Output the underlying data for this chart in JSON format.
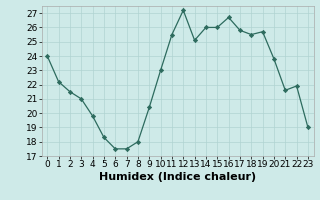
{
  "x": [
    0,
    1,
    2,
    3,
    4,
    5,
    6,
    7,
    8,
    9,
    10,
    11,
    12,
    13,
    14,
    15,
    16,
    17,
    18,
    19,
    20,
    21,
    22,
    23
  ],
  "y": [
    24,
    22.2,
    21.5,
    21,
    19.8,
    18.3,
    17.5,
    17.5,
    18,
    20.4,
    23,
    25.5,
    27.2,
    25.1,
    26,
    26,
    26.7,
    25.8,
    25.5,
    25.7,
    23.8,
    21.6,
    21.9,
    19
  ],
  "line_color": "#2d6b5e",
  "marker": "D",
  "marker_size": 2.2,
  "bg_color": "#ceeae8",
  "grid_color": "#b0d4d2",
  "xlabel": "Humidex (Indice chaleur)",
  "xlim": [
    -0.5,
    23.5
  ],
  "ylim": [
    17,
    27.5
  ],
  "yticks": [
    17,
    18,
    19,
    20,
    21,
    22,
    23,
    24,
    25,
    26,
    27
  ],
  "xticks": [
    0,
    1,
    2,
    3,
    4,
    5,
    6,
    7,
    8,
    9,
    10,
    11,
    12,
    13,
    14,
    15,
    16,
    17,
    18,
    19,
    20,
    21,
    22,
    23
  ],
  "tick_fontsize": 6.5,
  "xlabel_fontsize": 8
}
